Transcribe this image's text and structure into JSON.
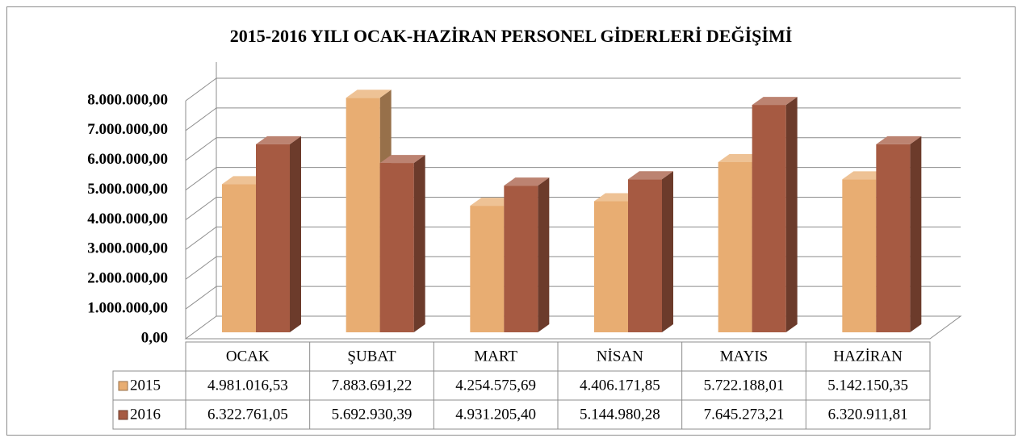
{
  "chart_data": {
    "type": "bar3d",
    "title": "2015-2016 YILI OCAK-HAZİRAN PERSONEL GİDERLERİ DEĞİŞİMİ",
    "categories": [
      "OCAK",
      "ŞUBAT",
      "MART",
      "NİSAN",
      "MAYIS",
      "HAZİRAN"
    ],
    "series": [
      {
        "name": "2015",
        "color": "#e8ad72",
        "values": [
          4981016.53,
          7883691.22,
          4254575.69,
          4406171.85,
          5722188.01,
          5142150.35
        ],
        "value_labels": [
          "4.981.016,53",
          "7.883.691,22",
          "4.254.575,69",
          "4.406.171,85",
          "5.722.188,01",
          "5.142.150,35"
        ]
      },
      {
        "name": "2016",
        "color": "#a65a42",
        "values": [
          6322761.05,
          5692930.39,
          4931205.4,
          5144980.28,
          7645273.21,
          6320911.81
        ],
        "value_labels": [
          "6.322.761,05",
          "5.692.930,39",
          "4.931.205,40",
          "5.144.980,28",
          "7.645.273,21",
          "6.320.911,81"
        ]
      }
    ],
    "ylim": [
      0,
      8000000
    ],
    "yticks": [
      {
        "value": 0,
        "label": "0,00"
      },
      {
        "value": 1000000,
        "label": "1.000.000,00"
      },
      {
        "value": 2000000,
        "label": "2.000.000,00"
      },
      {
        "value": 3000000,
        "label": "3.000.000,00"
      },
      {
        "value": 4000000,
        "label": "4.000.000,00"
      },
      {
        "value": 5000000,
        "label": "5.000.000,00"
      },
      {
        "value": 6000000,
        "label": "6.000.000,00"
      },
      {
        "value": 7000000,
        "label": "7.000.000,00"
      },
      {
        "value": 8000000,
        "label": "8.000.000,00"
      }
    ],
    "grid": true
  }
}
